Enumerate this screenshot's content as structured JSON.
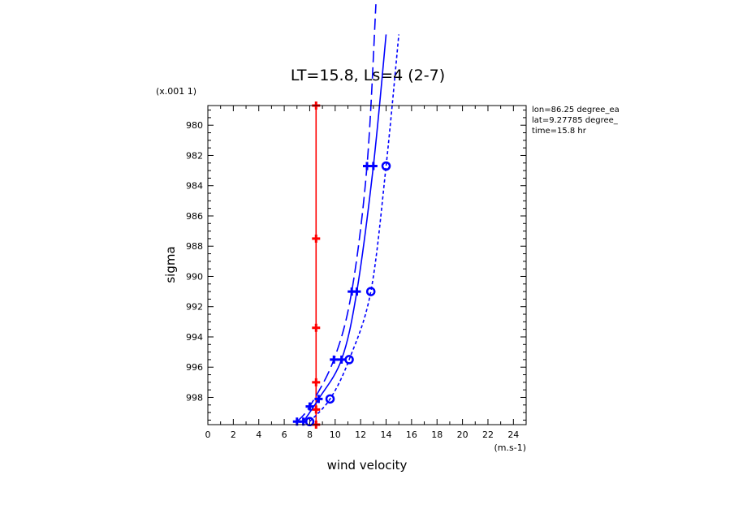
{
  "chart_data": {
    "type": "line",
    "title": "LT=15.8, Ls=4 (2-7)",
    "xlabel": "wind velocity",
    "ylabel": "sigma",
    "x_units": "(m.s-1)",
    "y_scale_note": "(x.001 1)",
    "xlim": [
      0,
      25
    ],
    "ylim": [
      999.8,
      978.7
    ],
    "y_inverted": true,
    "x_ticks": [
      0,
      2,
      4,
      6,
      8,
      10,
      12,
      14,
      16,
      18,
      20,
      22,
      24
    ],
    "y_ticks": [
      980,
      982,
      984,
      986,
      988,
      990,
      992,
      994,
      996,
      998
    ],
    "info": [
      "lon=86.25 degree_ea",
      "lat=9.27785 degree_",
      "time=15.8 hr"
    ],
    "series": [
      {
        "color": "#ff0000",
        "dash": "solid",
        "marker": "cross",
        "clip_top": false,
        "points": [
          [
            8.5,
            978.7
          ],
          [
            8.5,
            987.5
          ],
          [
            8.5,
            993.4
          ],
          [
            8.5,
            997.0
          ],
          [
            8.5,
            998.8
          ],
          [
            8.5,
            999.8
          ]
        ]
      },
      {
        "color": "#0000ff",
        "dash": "solid",
        "marker": "cross",
        "clip_top": true,
        "points": [
          [
            7.5,
            999.6
          ],
          [
            8.7,
            998.1
          ],
          [
            10.5,
            995.5
          ],
          [
            11.7,
            991.0
          ],
          [
            13.0,
            982.7
          ],
          [
            14.0,
            974.0
          ]
        ]
      },
      {
        "color": "#0000ff",
        "dash": "longdash",
        "marker": "cross",
        "clip_top": true,
        "points": [
          [
            7.0,
            999.6
          ],
          [
            8.0,
            998.6
          ],
          [
            9.9,
            995.5
          ],
          [
            11.3,
            991.0
          ],
          [
            12.5,
            982.7
          ],
          [
            13.2,
            972.0
          ]
        ]
      },
      {
        "color": "#0000ff",
        "dash": "shortdash",
        "marker": "circle",
        "clip_top": true,
        "points": [
          [
            8.0,
            999.6
          ],
          [
            9.6,
            998.1
          ],
          [
            11.1,
            995.5
          ],
          [
            12.8,
            991.0
          ],
          [
            14.0,
            982.7
          ],
          [
            15.0,
            974.0
          ]
        ]
      }
    ]
  }
}
